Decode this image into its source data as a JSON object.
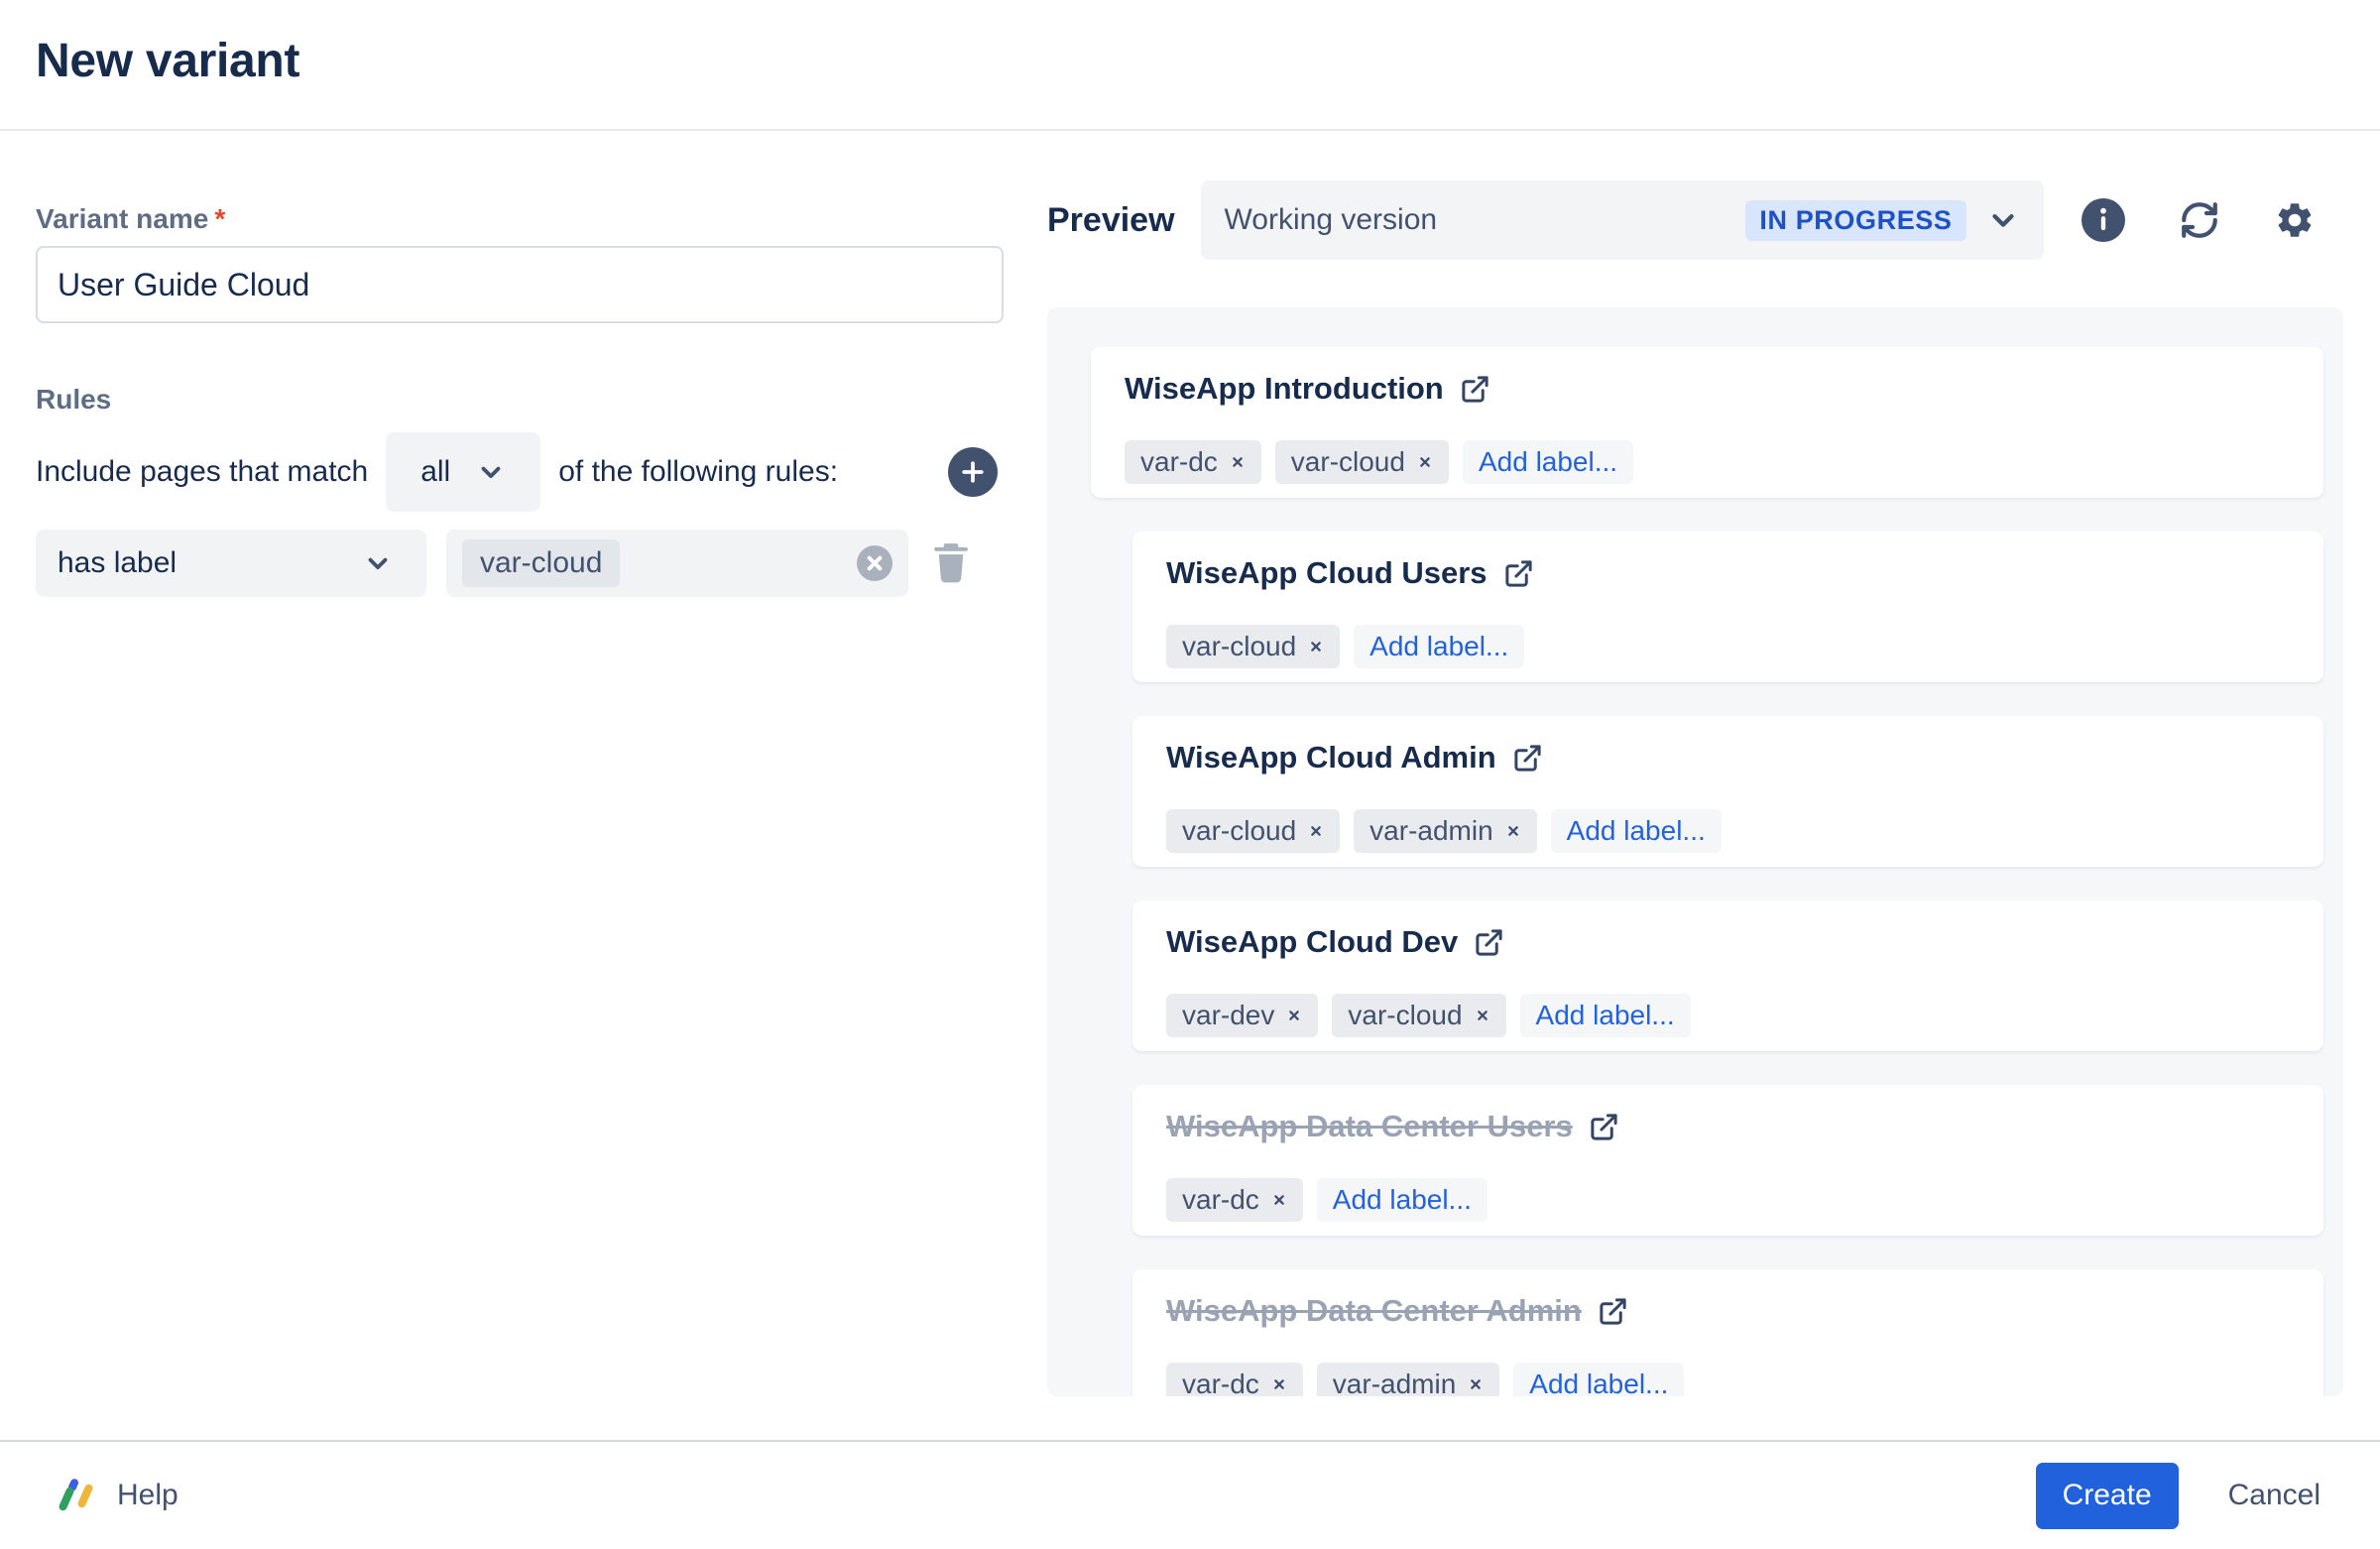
{
  "dialog": {
    "title": "New variant"
  },
  "form": {
    "variant_name": {
      "label": "Variant name",
      "required_mark": "*",
      "value": "User Guide Cloud"
    },
    "rules": {
      "label": "Rules",
      "match_prefix": "Include pages that match",
      "match_value": "all",
      "match_suffix": "of the following rules:",
      "rule": {
        "condition": "has label",
        "value": "var-cloud"
      }
    }
  },
  "preview": {
    "heading": "Preview",
    "version": {
      "name": "Working version",
      "status": "IN PROGRESS"
    },
    "toolbar_icons": [
      "info-icon",
      "sync-icon",
      "gear-icon"
    ],
    "add_label_text": "Add label...",
    "pages": [
      {
        "title": "WiseApp Introduction",
        "labels": [
          "var-dc",
          "var-cloud"
        ],
        "struck": false,
        "indent": 0
      },
      {
        "title": "WiseApp Cloud Users",
        "labels": [
          "var-cloud"
        ],
        "struck": false,
        "indent": 1
      },
      {
        "title": "WiseApp Cloud Admin",
        "labels": [
          "var-cloud",
          "var-admin"
        ],
        "struck": false,
        "indent": 1
      },
      {
        "title": "WiseApp Cloud Dev",
        "labels": [
          "var-dev",
          "var-cloud"
        ],
        "struck": false,
        "indent": 1
      },
      {
        "title": "WiseApp Data Center Users",
        "labels": [
          "var-dc"
        ],
        "struck": true,
        "indent": 1
      },
      {
        "title": "WiseApp Data Center Admin",
        "labels": [
          "var-dc",
          "var-admin"
        ],
        "struck": true,
        "indent": 1
      }
    ]
  },
  "footer": {
    "help": "Help",
    "create": "Create",
    "cancel": "Cancel"
  },
  "colors": {
    "accent_blue": "#2161DC",
    "link_blue": "#2262DD",
    "badge_bg": "#D9E5FB",
    "badge_text": "#1D51C6",
    "icon_slate": "#42526E",
    "muted_icon": "#A9B1BD",
    "struck_text": "#9AA3B3",
    "logo_blue": "#3D5FE0",
    "logo_green": "#31A05F",
    "logo_yellow": "#EFB63C"
  }
}
